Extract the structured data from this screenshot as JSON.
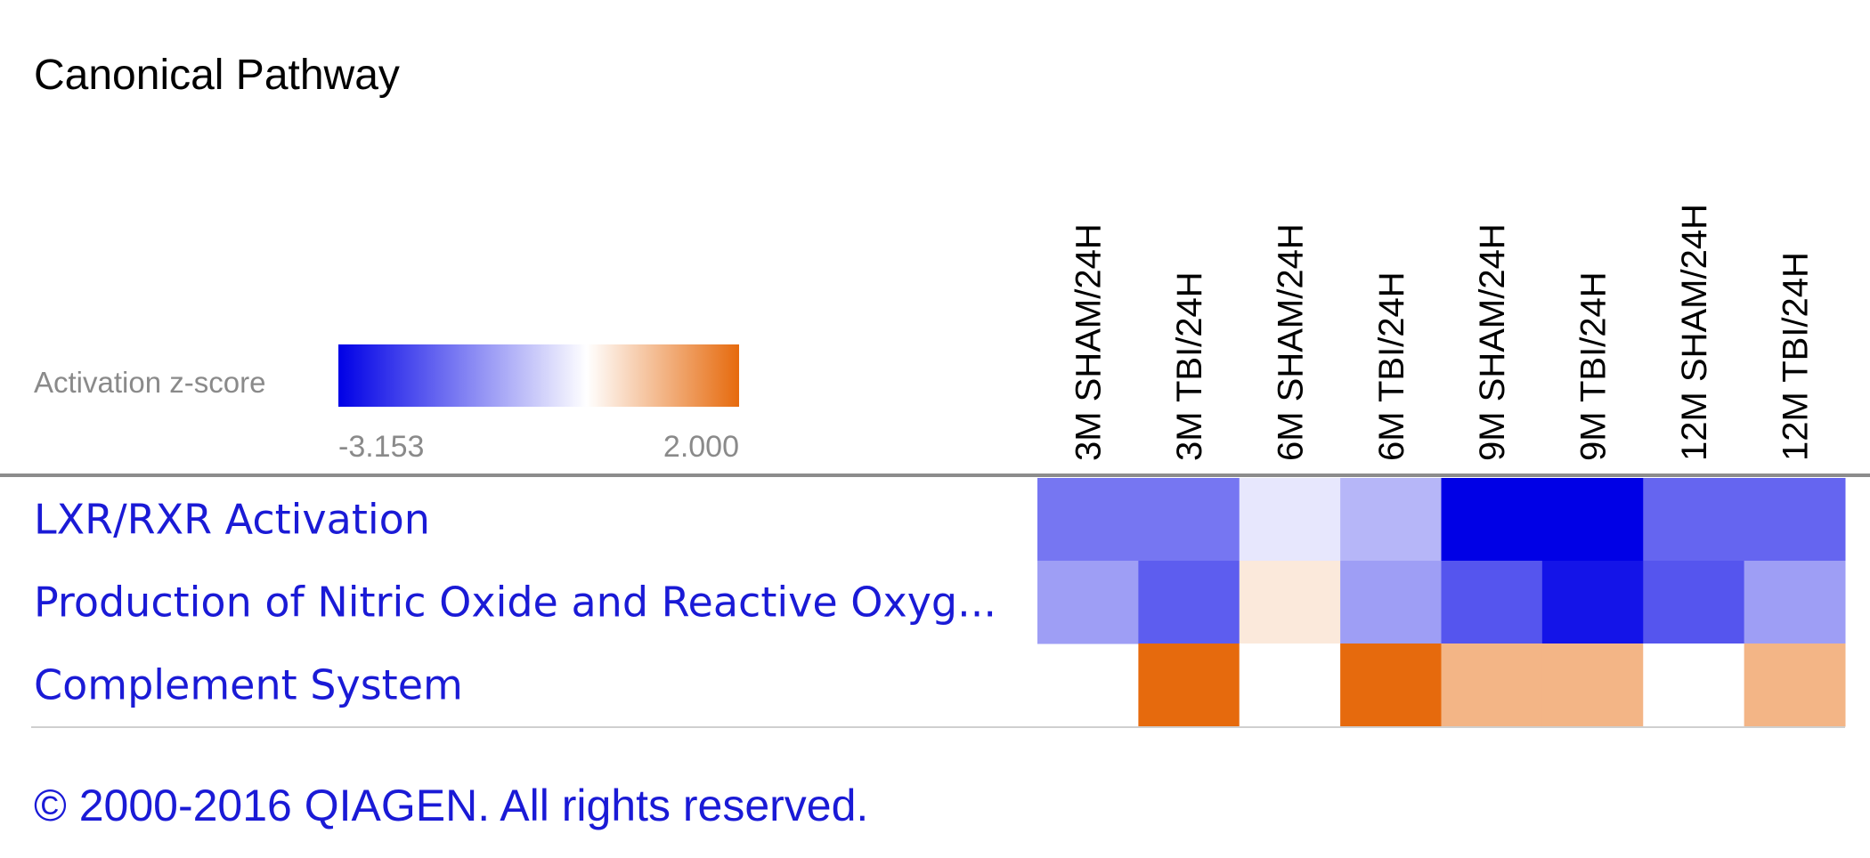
{
  "chart_data": {
    "type": "heatmap",
    "title": "Canonical Pathway",
    "legend": {
      "label": "Activation z-score",
      "min_label": "-3.153",
      "max_label": "2.000",
      "min": -3.153,
      "max": 2.0,
      "colors": {
        "low": "#0000e6",
        "mid": "#ffffff",
        "high": "#e66a0d"
      }
    },
    "columns": [
      "3M SHAM/24H",
      "3M TBI/24H",
      "6M SHAM/24H",
      "6M TBI/24H",
      "9M SHAM/24H",
      "9M TBI/24H",
      "12M SHAM/24H",
      "12M TBI/24H"
    ],
    "rows": [
      "LXR/RXR Activation",
      "Production of Nitric Oxide and Reactive Oxyg...",
      "Complement System"
    ],
    "values": [
      [
        -1.7,
        -1.7,
        -0.3,
        -0.9,
        -3.15,
        -3.15,
        -1.9,
        -1.9
      ],
      [
        -1.2,
        -2.0,
        0.3,
        -1.2,
        -2.1,
        -2.9,
        -2.1,
        -1.2
      ],
      [
        null,
        2.0,
        0.0,
        2.0,
        1.0,
        1.0,
        0.0,
        1.0
      ]
    ]
  },
  "footer": {
    "copyright": "© 2000-2016 QIAGEN. All rights reserved."
  },
  "colors": {
    "link": "#1a1ad6",
    "title": "#000000",
    "muted": "#8a8a8a",
    "divider": "#8c8c8c"
  }
}
